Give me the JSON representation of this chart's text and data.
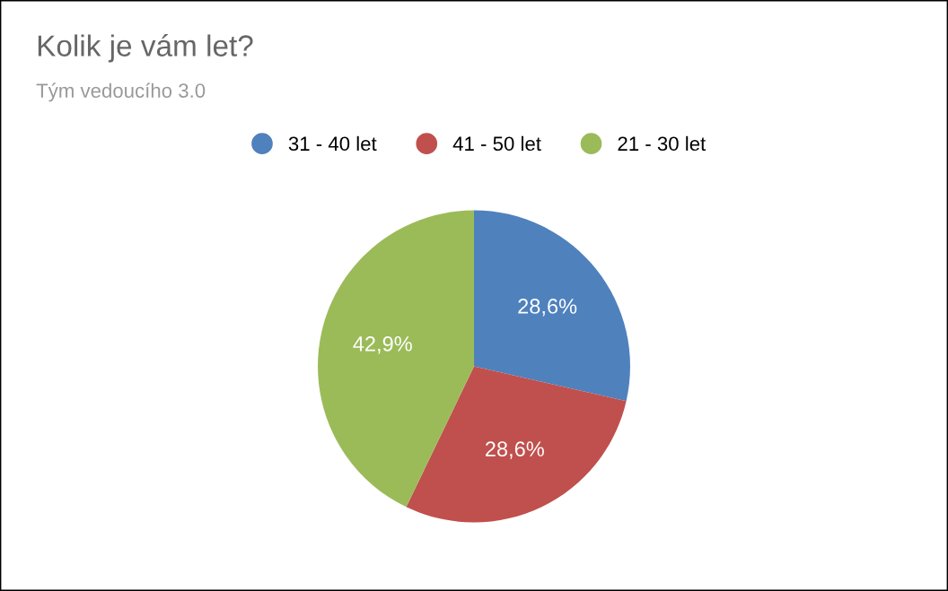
{
  "chart_data": {
    "type": "pie",
    "title": "Kolik je vám let?",
    "subtitle": "Tým vedoucího 3.0",
    "categories": [
      "31 - 40 let",
      "41 - 50 let",
      "21 - 30 let"
    ],
    "values": [
      28.6,
      28.6,
      42.9
    ],
    "colors": [
      "#4f81bd",
      "#c0504d",
      "#9bbb59"
    ],
    "value_labels": [
      "28,6%",
      "28,6%",
      "42,9%"
    ],
    "legend": "top"
  }
}
